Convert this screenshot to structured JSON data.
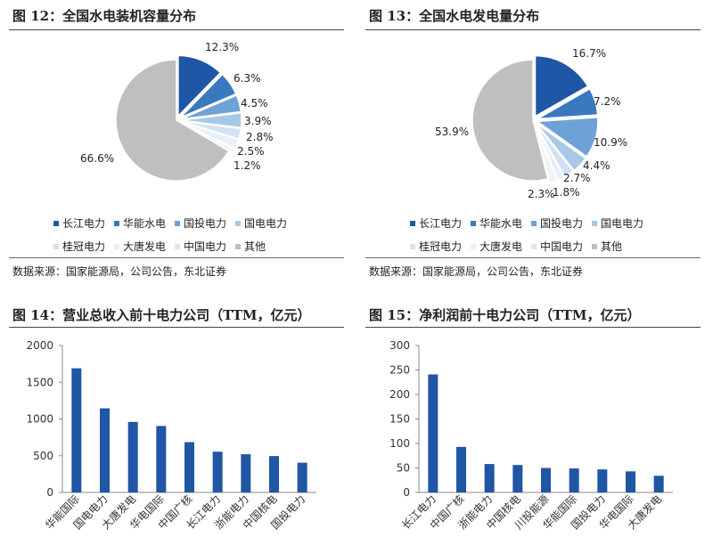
{
  "charts": [
    {
      "figure_title": "图 12：全国水电装机容量分布",
      "source": "数据来源：国家能源局，公司公告，东北证券",
      "chart_data": {
        "type": "pie",
        "title": "图 12：全国水电装机容量分布",
        "labels": [
          "长江电力",
          "华能水电",
          "国投电力",
          "国电电力",
          "桂冠电力",
          "大唐发电",
          "中国电力",
          "其他"
        ],
        "values": [
          12.3,
          6.3,
          4.5,
          3.9,
          2.8,
          2.5,
          1.2,
          66.6
        ],
        "value_labels": [
          "12.3%",
          "6.3%",
          "4.5%",
          "3.9%",
          "2.8%",
          "2.5%",
          "1.2%",
          "66.6%"
        ],
        "colors": [
          "#1f56a6",
          "#3a78c0",
          "#6ea1d6",
          "#a8c8e8",
          "#d2e2f2",
          "#e7eff8",
          "#f0f4f9",
          "#bfbfbf"
        ],
        "exploded": [
          true,
          true,
          true,
          true,
          true,
          true,
          true,
          false
        ],
        "legend_position": "bottom"
      }
    },
    {
      "figure_title": "图 13：全国水电发电量分布",
      "source": "数据来源：国家能源局，公司公告，东北证券",
      "chart_data": {
        "type": "pie",
        "title": "图 13：全国水电发电量分布",
        "labels": [
          "长江电力",
          "华能水电",
          "国投电力",
          "国电电力",
          "桂冠电力",
          "大唐发电",
          "中国电力",
          "其他"
        ],
        "values": [
          16.7,
          7.2,
          10.9,
          4.4,
          2.7,
          1.8,
          2.3,
          53.9
        ],
        "value_labels": [
          "16.7%",
          "7.2%",
          "10.9%",
          "4.4%",
          "2.7%",
          "1.8%",
          "2.3%",
          "53.9%"
        ],
        "colors": [
          "#1f56a6",
          "#3a78c0",
          "#6ea1d6",
          "#a8c8e8",
          "#d2e2f2",
          "#e7eff8",
          "#f0f4f9",
          "#bfbfbf"
        ],
        "exploded": [
          true,
          true,
          true,
          true,
          true,
          true,
          true,
          false
        ],
        "legend_position": "bottom"
      }
    },
    {
      "figure_title": "图 14：营业总收入前十电力公司（TTM，亿元）",
      "chart_data": {
        "type": "bar",
        "title": "图 14：营业总收入前十电力公司（TTM，亿元）",
        "categories": [
          "华能国际",
          "国电电力",
          "大唐发电",
          "华电国际",
          "中国广核",
          "长江电力",
          "浙能电力",
          "中国核电",
          "国投电力"
        ],
        "values": [
          1690,
          1145,
          960,
          905,
          685,
          555,
          520,
          495,
          405
        ],
        "ylim": [
          0,
          2000
        ],
        "yticks": [
          0,
          500,
          1000,
          1500,
          2000
        ],
        "grid": false,
        "color": "#1f56a6"
      }
    },
    {
      "figure_title": "图 15：净利润前十电力公司（TTM，亿元）",
      "chart_data": {
        "type": "bar",
        "title": "图 15：净利润前十电力公司（TTM，亿元）",
        "categories": [
          "长江电力",
          "中国广核",
          "浙能电力",
          "中国核电",
          "川投能源",
          "华能国际",
          "国投电力",
          "华电国际",
          "大唐发电"
        ],
        "values": [
          241,
          93,
          58,
          56,
          50,
          49,
          47,
          43,
          34
        ],
        "ylim": [
          0,
          300
        ],
        "yticks": [
          0,
          50,
          100,
          150,
          200,
          250,
          300
        ],
        "grid": false,
        "color": "#1f56a6"
      }
    }
  ]
}
